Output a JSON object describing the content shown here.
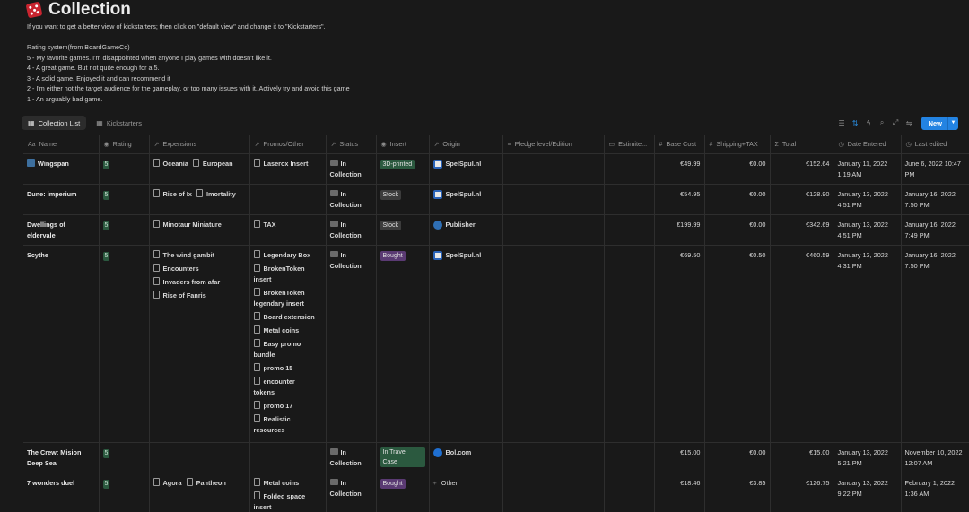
{
  "page": {
    "title": "Collection",
    "description": [
      "If you want to get a better view of kickstarters; then click on \"default view\" and change it to \"Kickstarters\".",
      "",
      "Rating system(from BoardGameCo)",
      "5 - My favorite games. I'm disappointed when anyone I play games with doesn't like it.",
      "4 - A great game. But not quite enough for a 5.",
      "3 - A solid game. Enjoyed it and can recommend it",
      "2 - I'm either not the target audience for the gameplay, or too many issues with it. Actively try and avoid this game",
      "1 - An arguably bad game."
    ]
  },
  "views": {
    "tabs": [
      {
        "label": "Collection List",
        "icon": "table-icon",
        "active": true
      },
      {
        "label": "Kickstarters",
        "icon": "table-icon",
        "active": false
      }
    ],
    "new_label": "New"
  },
  "columns": [
    {
      "label": "Name",
      "icon": "Aa"
    },
    {
      "label": "Rating",
      "icon": "◉"
    },
    {
      "label": "Expensions",
      "icon": "↗"
    },
    {
      "label": "Promos/Other",
      "icon": "↗"
    },
    {
      "label": "Status",
      "icon": "↗"
    },
    {
      "label": "Insert",
      "icon": "◉"
    },
    {
      "label": "Origin",
      "icon": "↗"
    },
    {
      "label": "Pledge level/Edition",
      "icon": "≡"
    },
    {
      "label": "Estimite...",
      "icon": "▭"
    },
    {
      "label": "Base Cost",
      "icon": "#"
    },
    {
      "label": "Shipping+TAX",
      "icon": "#"
    },
    {
      "label": "Total",
      "icon": "Σ"
    },
    {
      "label": "Date Entered",
      "icon": "◷"
    },
    {
      "label": "Last edited",
      "icon": "◷"
    }
  ],
  "rows": [
    {
      "name": "Wingspan",
      "rating": "5",
      "expansions": [
        "Oceania",
        "European"
      ],
      "promos": [
        "Laserox Insert"
      ],
      "status": "In Collection",
      "insert": "3D-printed",
      "insert_color": "green",
      "origin": "SpelSpul.nl",
      "origin_logo": "spel",
      "base": "€49.99",
      "shipping": "€0.00",
      "total": "€152.64",
      "date_entered": "January 11, 2022 1:19 AM",
      "last_edited": "June 6, 2022 10:47 PM"
    },
    {
      "name": "Dune: imperium",
      "rating": "5",
      "expansions": [
        "Rise of Ix",
        "Imortality"
      ],
      "promos": [],
      "status": "In Collection",
      "insert": "Stock",
      "insert_color": "gray",
      "origin": "SpelSpul.nl",
      "origin_logo": "spel",
      "base": "€54.95",
      "shipping": "€0.00",
      "total": "€128.90",
      "date_entered": "January 13, 2022 4:51 PM",
      "last_edited": "January 16, 2022 7:50 PM"
    },
    {
      "name": "Dwellings of eldervale",
      "rating": "5",
      "expansions": [
        "Minotaur Miniature"
      ],
      "promos": [
        "TAX"
      ],
      "status": "In Collection",
      "insert": "Stock",
      "insert_color": "gray",
      "origin": "Publisher",
      "origin_logo": "pub",
      "base": "€199.99",
      "shipping": "€0.00",
      "total": "€342.69",
      "date_entered": "January 13, 2022 4:51 PM",
      "last_edited": "January 16, 2022 7:49 PM"
    },
    {
      "name": "Scythe",
      "rating": "5",
      "expansions": [
        "The wind gambit",
        "Encounters",
        "Invaders from afar",
        "Rise of Fanris"
      ],
      "promos": [
        "Legendary Box",
        "BrokenToken insert",
        "BrokenToken legendary insert",
        "Board extension",
        "Metal coins",
        "Easy promo bundle",
        "promo 15",
        "encounter tokens",
        "promo 17",
        "Realistic resources"
      ],
      "status": "In Collection",
      "insert": "Bought",
      "insert_color": "purple",
      "origin": "SpelSpul.nl",
      "origin_logo": "spel",
      "base": "€69.50",
      "shipping": "€0.50",
      "total": "€460.59",
      "date_entered": "January 13, 2022 4:31 PM",
      "last_edited": "January 16, 2022 7:50 PM"
    },
    {
      "name": "The Crew: Mision Deep Sea",
      "rating": "5",
      "expansions": [],
      "promos": [],
      "status": "In Collection",
      "insert": "In Travel Case",
      "insert_color": "green",
      "origin": "Bol.com",
      "origin_logo": "bol",
      "base": "€15.00",
      "shipping": "€0.00",
      "total": "€15.00",
      "date_entered": "January 13, 2022 5:21 PM",
      "last_edited": "November 10, 2022 12:07 AM"
    },
    {
      "name": "7 wonders duel",
      "rating": "5",
      "expansions": [
        "Agora",
        "Pantheon"
      ],
      "promos": [
        "Metal coins",
        "Folded space insert"
      ],
      "status": "In Collection",
      "insert": "Bought",
      "insert_color": "purple",
      "origin": "Other",
      "origin_logo": "plus",
      "base": "€18.46",
      "shipping": "€3.85",
      "total": "€126.75",
      "date_entered": "January 13, 2022 9:22 PM",
      "last_edited": "February 1, 2022 1:36 AM"
    }
  ]
}
